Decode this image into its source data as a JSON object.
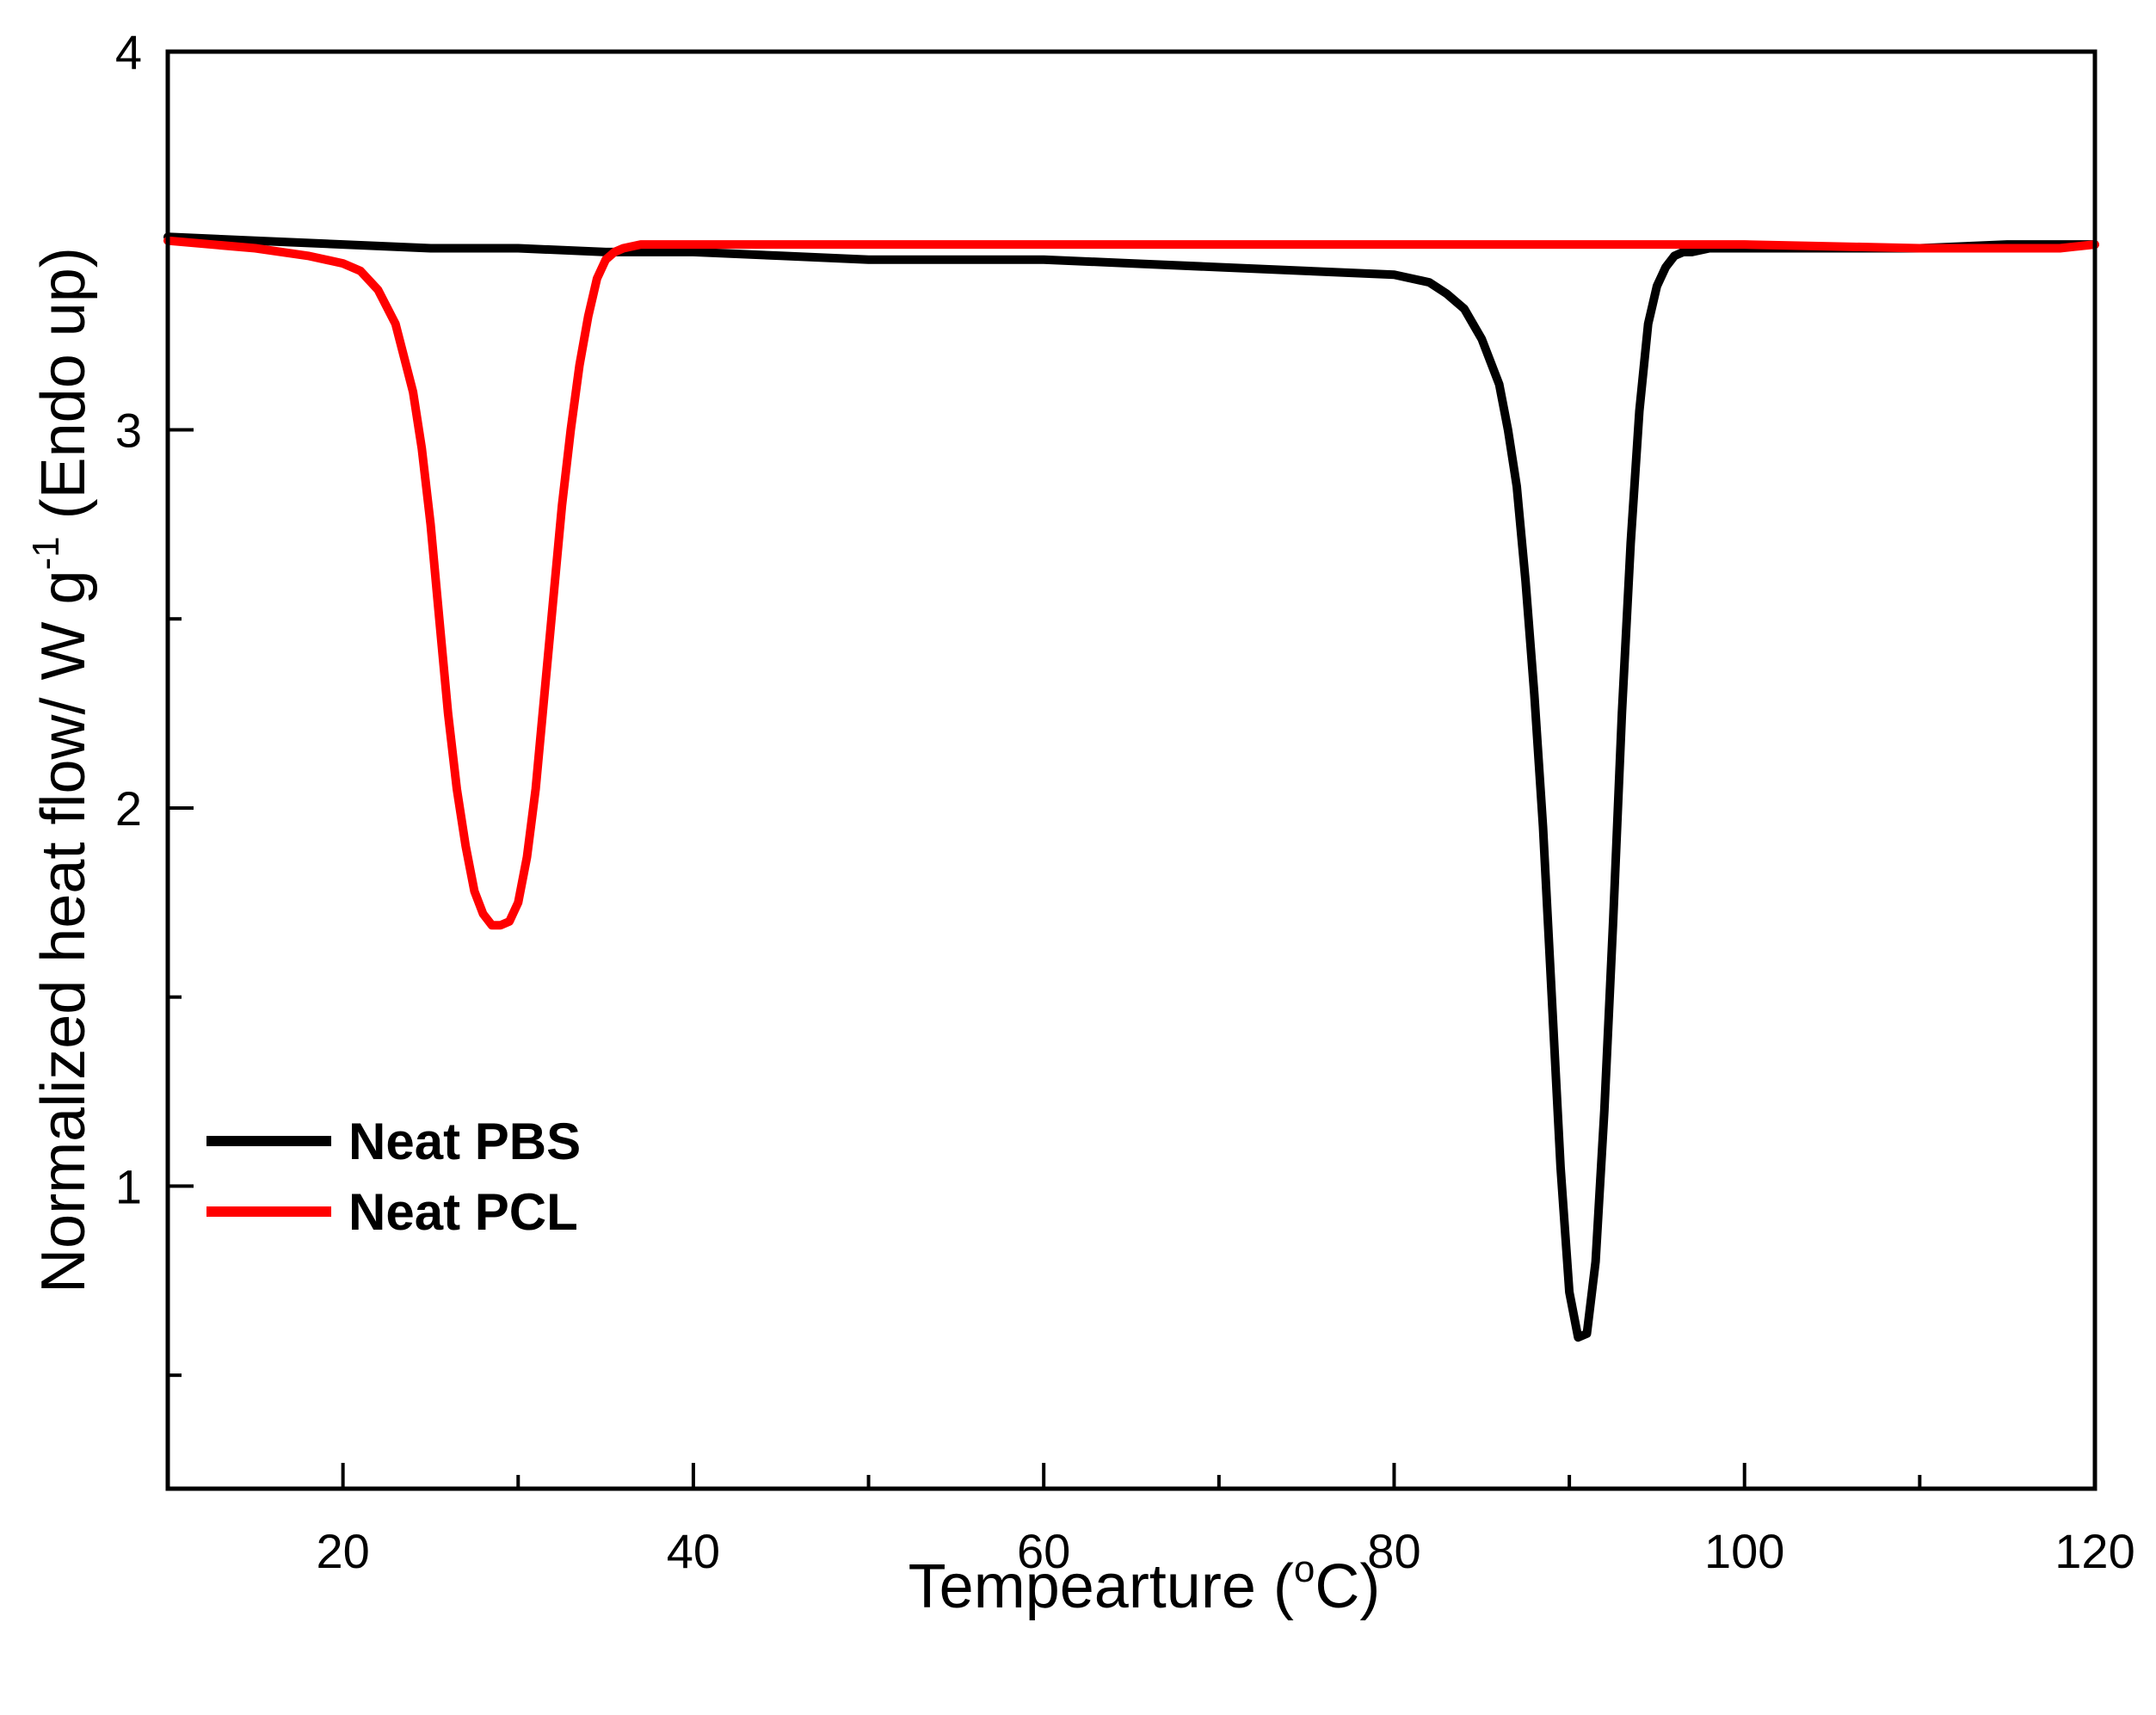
{
  "chart_data": {
    "type": "line",
    "title": "",
    "xlabel": {
      "main": "Tempearture (",
      "sup": "o",
      "unit": "C)"
    },
    "ylabel": {
      "main": "Normalized heat flow/ W g",
      "sup": "-1",
      "tail": " (Endo up)"
    },
    "xlim": [
      10,
      120
    ],
    "ylim": [
      0.2,
      4
    ],
    "x_major_ticks": [
      20,
      40,
      60,
      80,
      100,
      120
    ],
    "x_minor_ticks": [
      30,
      50,
      70,
      90,
      110
    ],
    "y_major_ticks": [
      1,
      2,
      3,
      4
    ],
    "y_minor_ticks": [
      0.5,
      1.5,
      2.5,
      3.5
    ],
    "legend_position": "lower-left",
    "series": [
      {
        "name": "Neat PBS",
        "color": "#000000",
        "x": [
          10,
          15,
          20,
          25,
          30,
          35,
          40,
          45,
          50,
          55,
          60,
          65,
          70,
          75,
          80,
          82,
          83,
          84,
          85,
          86,
          86.5,
          87,
          87.5,
          88,
          88.5,
          89,
          89.5,
          90,
          90.5,
          91,
          91.5,
          92,
          92.5,
          93,
          93.5,
          94,
          94.5,
          95,
          95.5,
          96,
          96.5,
          97,
          98,
          100,
          105,
          110,
          115,
          120
        ],
        "y": [
          3.51,
          3.5,
          3.49,
          3.48,
          3.48,
          3.47,
          3.47,
          3.46,
          3.45,
          3.45,
          3.45,
          3.44,
          3.43,
          3.42,
          3.41,
          3.39,
          3.36,
          3.32,
          3.24,
          3.12,
          3.0,
          2.85,
          2.6,
          2.3,
          1.95,
          1.5,
          1.05,
          0.72,
          0.6,
          0.61,
          0.8,
          1.2,
          1.7,
          2.25,
          2.7,
          3.05,
          3.28,
          3.38,
          3.43,
          3.46,
          3.47,
          3.47,
          3.48,
          3.48,
          3.48,
          3.48,
          3.49,
          3.49
        ]
      },
      {
        "name": "Neat PCL",
        "color": "#ff0000",
        "x": [
          10,
          15,
          18,
          20,
          21,
          22,
          23,
          24,
          24.5,
          25,
          25.5,
          26,
          26.5,
          27,
          27.5,
          28,
          28.5,
          29,
          29.5,
          30,
          30.5,
          31,
          31.5,
          32,
          32.5,
          33,
          33.5,
          34,
          34.5,
          35,
          35.5,
          36,
          37,
          40,
          50,
          60,
          70,
          80,
          90,
          100,
          110,
          118,
          120
        ],
        "y": [
          3.5,
          3.48,
          3.46,
          3.44,
          3.42,
          3.37,
          3.28,
          3.1,
          2.95,
          2.75,
          2.5,
          2.25,
          2.05,
          1.9,
          1.78,
          1.72,
          1.69,
          1.69,
          1.7,
          1.75,
          1.87,
          2.05,
          2.3,
          2.55,
          2.8,
          3.0,
          3.17,
          3.3,
          3.4,
          3.45,
          3.47,
          3.48,
          3.49,
          3.49,
          3.49,
          3.49,
          3.49,
          3.49,
          3.49,
          3.49,
          3.48,
          3.48,
          3.49
        ]
      }
    ]
  }
}
